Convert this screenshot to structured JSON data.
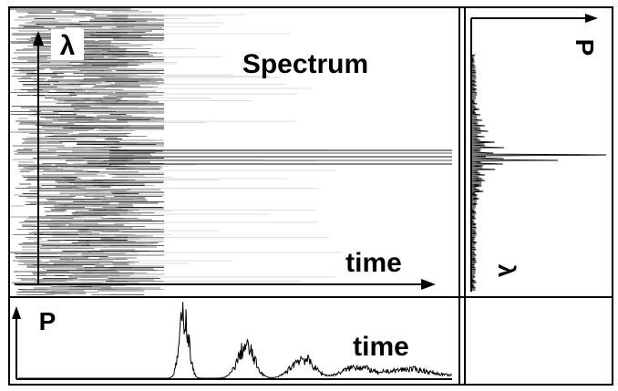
{
  "main_panel": {
    "title": "Spectrum",
    "y_axis_label": "λ",
    "x_axis_label": "time"
  },
  "bottom_panel": {
    "y_axis_label": "P",
    "x_axis_label": "time"
  },
  "side_panel": {
    "x_axis_label": "P",
    "y_axis_label": "λ"
  }
}
